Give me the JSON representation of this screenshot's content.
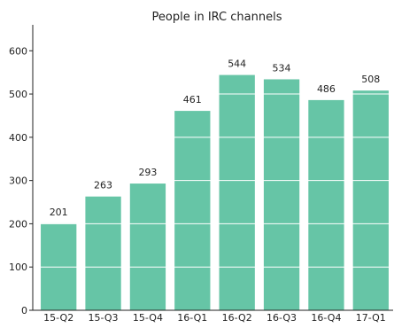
{
  "chart_data": {
    "type": "bar",
    "title": "People in IRC channels",
    "xlabel": "",
    "ylabel": "",
    "categories": [
      "15-Q2",
      "15-Q3",
      "15-Q4",
      "16-Q1",
      "16-Q2",
      "16-Q3",
      "16-Q4",
      "17-Q1"
    ],
    "values": [
      201,
      263,
      293,
      461,
      544,
      534,
      486,
      508
    ],
    "ylim": [
      0,
      660
    ],
    "yticks": [
      0,
      100,
      200,
      300,
      400,
      500,
      600
    ],
    "grid": "horizontal",
    "bar_color": "#66c5a6",
    "gridline_color": "#ffffff",
    "data_labels": true
  }
}
